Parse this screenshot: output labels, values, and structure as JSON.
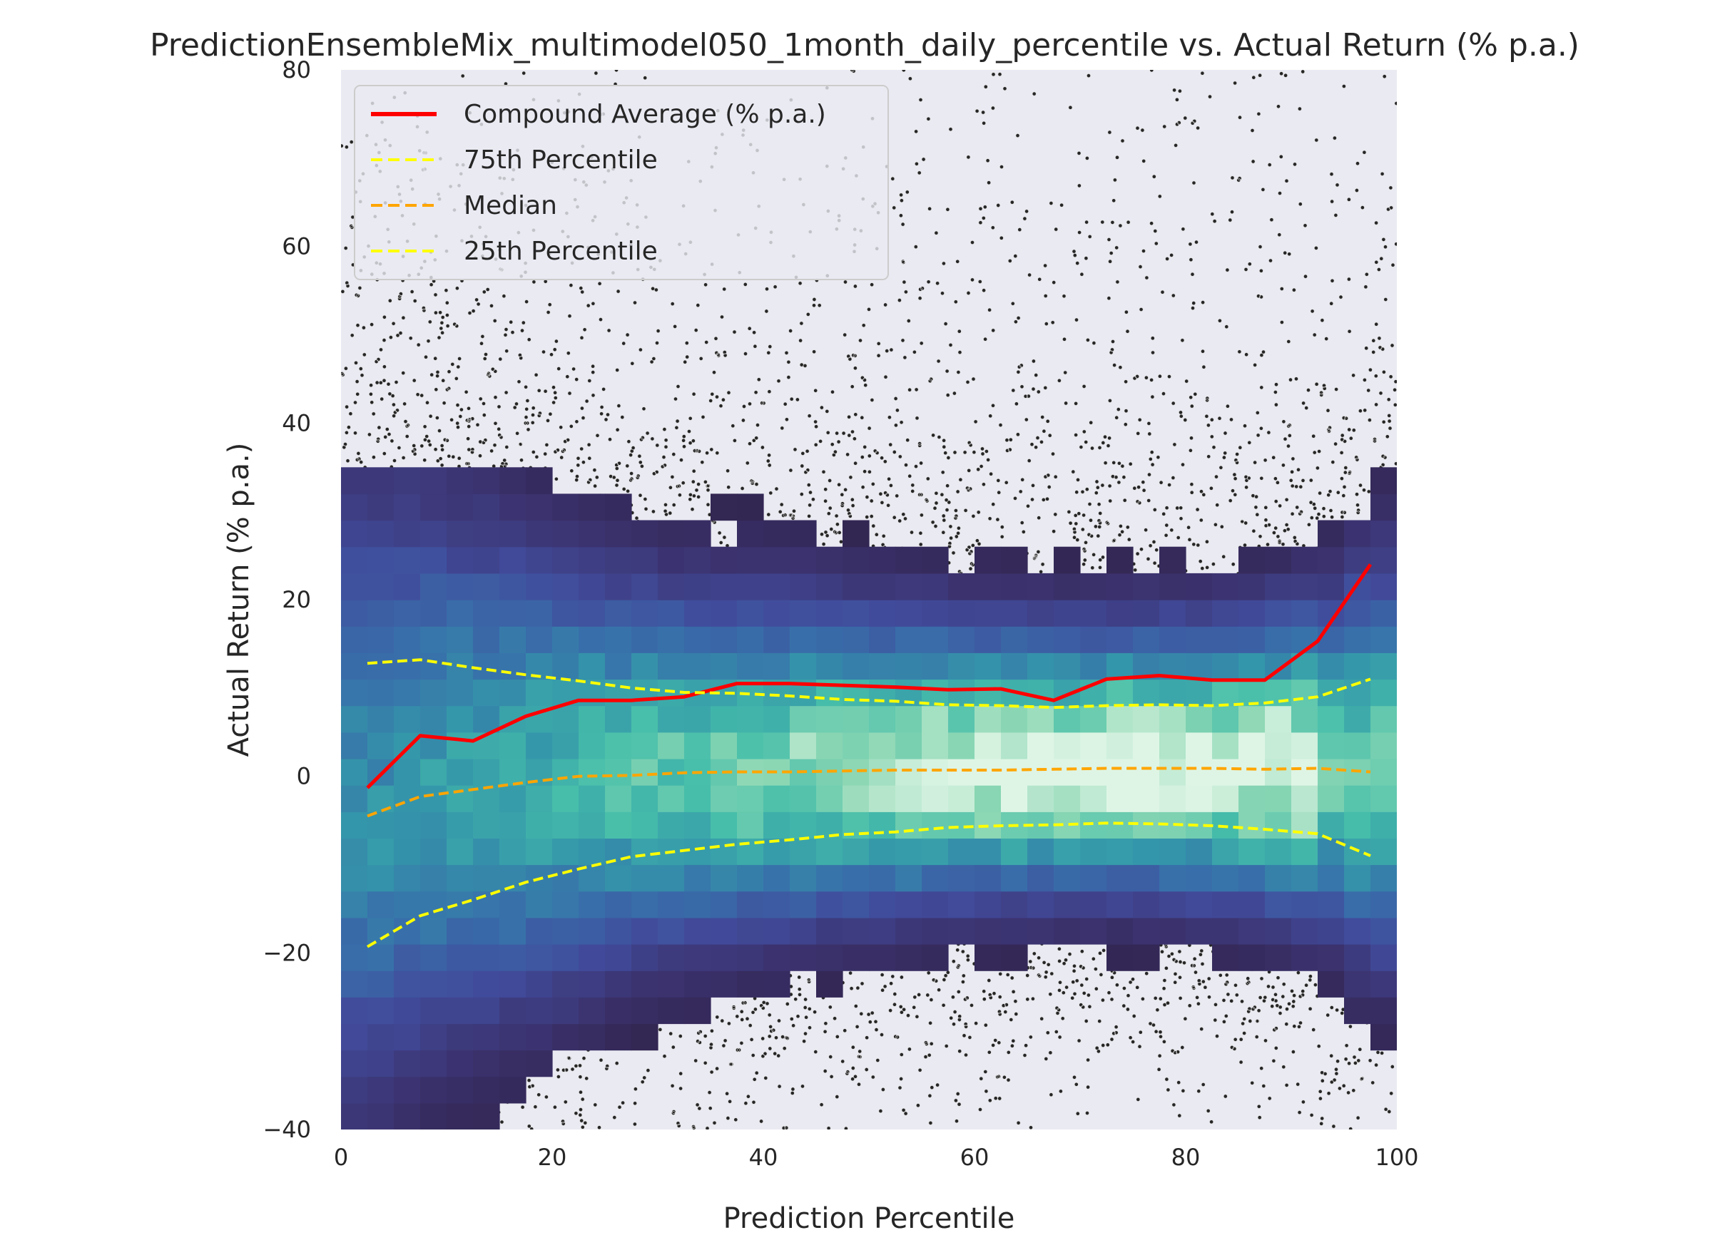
{
  "chart_data": {
    "type": "scatter",
    "title": "PredictionEnsembleMix_multimodel050_1month_daily_percentile vs. Actual Return (% p.a.)",
    "xlabel": "Prediction Percentile",
    "ylabel": "Actual Return (% p.a.)",
    "xlim": [
      0,
      100
    ],
    "ylim": [
      -40,
      80
    ],
    "x_ticks": [
      "0",
      "20",
      "40",
      "60",
      "80",
      "100"
    ],
    "y_ticks": [
      "−40",
      "−20",
      "0",
      "20",
      "40",
      "60",
      "80"
    ],
    "grid": false,
    "legend_position": "top-left",
    "background_color": "#eaeaf2",
    "x": [
      2.5,
      7.5,
      12.5,
      17.5,
      22.5,
      27.5,
      32.5,
      37.5,
      42.5,
      47.5,
      52.5,
      57.5,
      62.5,
      67.5,
      72.5,
      77.5,
      82.5,
      87.5,
      92.5,
      97.5
    ],
    "series": [
      {
        "name": "Compound Average (% p.a.)",
        "color": "#ff0000",
        "style": "solid",
        "values": [
          -1.3,
          4.6,
          4.0,
          6.8,
          8.6,
          8.6,
          9.0,
          10.5,
          10.5,
          10.3,
          10.1,
          9.8,
          9.9,
          8.6,
          11.0,
          11.4,
          10.9,
          10.9,
          15.3,
          24.0
        ]
      },
      {
        "name": "75th Percentile",
        "color": "#ffff00",
        "style": "dashed",
        "values": [
          12.8,
          13.2,
          12.3,
          11.5,
          10.8,
          10.0,
          9.5,
          9.4,
          9.1,
          8.7,
          8.5,
          8.1,
          8.0,
          7.8,
          8.0,
          8.1,
          8.0,
          8.3,
          9.0,
          11.0
        ]
      },
      {
        "name": "Median",
        "color": "#ffa500",
        "style": "dashed",
        "values": [
          -4.5,
          -2.3,
          -1.5,
          -0.7,
          0.0,
          0.1,
          0.4,
          0.5,
          0.5,
          0.6,
          0.7,
          0.7,
          0.7,
          0.8,
          0.9,
          0.9,
          0.9,
          0.8,
          0.9,
          0.5
        ]
      },
      {
        "name": "25th Percentile",
        "color": "#ffff00",
        "style": "dashed",
        "values": [
          -19.3,
          -15.8,
          -14.0,
          -12.0,
          -10.5,
          -9.1,
          -8.4,
          -7.7,
          -7.2,
          -6.6,
          -6.3,
          -5.8,
          -5.6,
          -5.5,
          -5.3,
          -5.4,
          -5.6,
          -6.0,
          -6.5,
          -9.0
        ]
      }
    ]
  }
}
